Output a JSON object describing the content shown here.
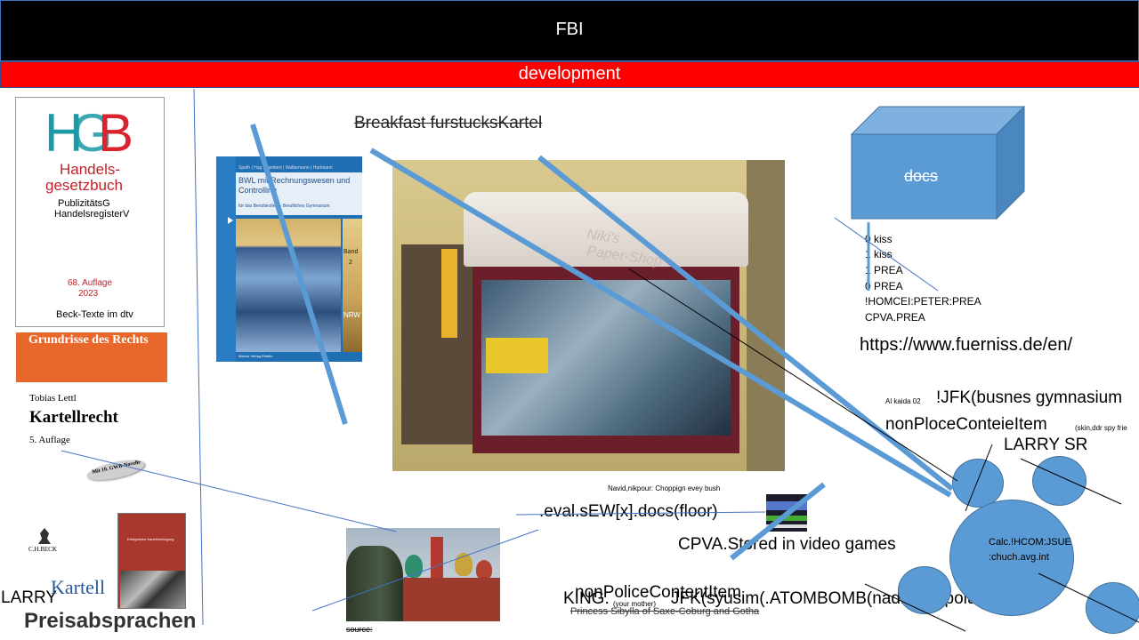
{
  "header": {
    "title": "FBI"
  },
  "subheader": {
    "title": "development"
  },
  "hgb_book": {
    "logo": "HGB",
    "title_line1": "Handels-",
    "title_line2": "gesetzbuch",
    "sub1": "PublizitätsG",
    "sub2": "HandelsregisterV",
    "edition": "68. Auflage",
    "year": "2023",
    "publisher": "Beck-Texte im dtv"
  },
  "kartell_book": {
    "series": "Grundrisse des Rechts",
    "author": "Tobias Lettl",
    "title": "Kartellrecht",
    "edition": "5. Auflage",
    "badge": "Mit 10. GWB-Novelle",
    "publisher": "C.H.BECK"
  },
  "small_book": {
    "title": "Erfolgreiche Kartellverfolgung"
  },
  "bwl_book": {
    "authors": "Speth | Hug | Lambert | Waltermann | Hartmann",
    "title": "BWL mit Rechnungswesen und Controlling",
    "subtitle": "für das Berufskolleg – Berufliches Gymnasium",
    "band_label": "Band",
    "band_no": "2",
    "region": "NRW",
    "publisher": "Merkur Verlag Rinteln"
  },
  "shop_photo": {
    "awning_text_1": "Niki's",
    "awning_text_2": "Paper-Shop"
  },
  "texts": {
    "breakfast": "Breakfast furstucksKartel",
    "docs_box": "docs",
    "kiss1": "0 kiss",
    "kiss2": "1 kiss",
    "prea1": "1 PREA",
    "prea2": "0 PREA",
    "homcei": "!HOMCEI:PETER:PREA",
    "cpva_prea": "CPVA.PREA",
    "url": "https://www.fuerniss.de/en/",
    "alkaida": "Al kaida 02",
    "jfk_busnes": "!JFK(busnes gymnasium",
    "nonplace": "nonPloceConteieItem",
    "nonplace_small": "(skin,ddr spy frie",
    "larry_sr": "LARRY SR",
    "navid": "Navid,nikpour: Choppign evey bush",
    "eval": ".eval.sEW[x].docs(floor)",
    "cpva_stored": "CPVA.Stored in video games",
    "calc_line1": "Calc.!HCOM:JSUE",
    "calc_line2": ":chuch.avg.int",
    "nonpolice": "nonPoliceContentItem",
    "king": "KING.",
    "your_mother": "(your mother)",
    "jfk_syusim": "JFK(syusim(.ATOMBOMB(nadir nickpoiu",
    "princess": "Princess Sibylla of Saxe-Coburg and Gotha",
    "source": "source:",
    "larry": "LARRY",
    "kartell": "Kartell",
    "preis": "Preisabsprachen"
  },
  "colors": {
    "header_bg": "#000000",
    "subheader_bg": "#ff0000",
    "accent_blue": "#5b9bd5",
    "line_blue": "#4472c4"
  }
}
